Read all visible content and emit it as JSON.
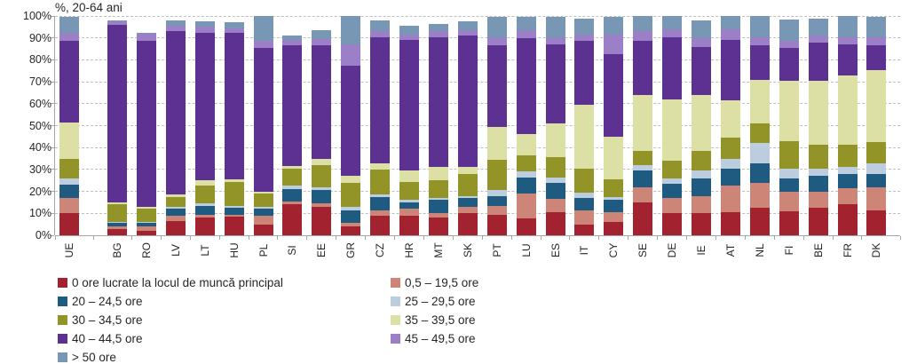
{
  "title": "%, 20-64 ani",
  "colors": {
    "h0": "#A22230",
    "h05_195": "#CC8576",
    "h20_245": "#1F5A80",
    "h25_295": "#BCCDE0",
    "h30_345": "#939428",
    "h35_395": "#DDE0A5",
    "h40_445": "#5C3192",
    "h45_495": "#9B7FC7",
    "h50plus": "#7897B4",
    "gridline": "#bfbfbf",
    "axis": "#a6a6a6",
    "text": "#262626"
  },
  "chart_data": {
    "type": "bar",
    "subtype": "stacked-percentage-column",
    "title": "%, 20-64 ani",
    "xlabel": "",
    "ylabel": "",
    "ylim": [
      0,
      100
    ],
    "grid": "horizontal dashed every 10%",
    "legend_position": "bottom two-column",
    "y_ticks": [
      "0%",
      "10%",
      "20%",
      "30%",
      "40%",
      "50%",
      "60%",
      "70%",
      "80%",
      "90%",
      "100%"
    ],
    "categories": [
      "UE",
      "BG",
      "RO",
      "LV",
      "LT",
      "HU",
      "PL",
      "SI",
      "EE",
      "GR",
      "CZ",
      "HR",
      "MT",
      "SK",
      "PT",
      "LU",
      "ES",
      "IT",
      "CY",
      "SE",
      "DE",
      "IE",
      "AT",
      "NL",
      "FI",
      "BE",
      "FR",
      "DK"
    ],
    "series": [
      {
        "name": "0 ore lucrate la locul de muncă principal",
        "color_key": "h0",
        "values": [
          10,
          3,
          2,
          6.5,
          8,
          8.5,
          5,
          14,
          13,
          4,
          9,
          9,
          8,
          10,
          9.5,
          7.5,
          10.5,
          5,
          6,
          15,
          10,
          10,
          10.5,
          12.5,
          11,
          12.5,
          14,
          11.5
        ]
      },
      {
        "name": "0,5 – 19,5 ore",
        "color_key": "h05_195",
        "values": [
          7,
          1,
          2,
          2.5,
          1.5,
          1,
          4,
          1.5,
          1.5,
          1.5,
          2.5,
          3,
          2,
          3,
          4,
          11.5,
          6,
          6.5,
          4.5,
          7,
          7,
          8,
          12,
          11.5,
          9,
          7.5,
          7.5,
          10.5
        ]
      },
      {
        "name": "20 – 24,5 ore",
        "color_key": "h20_245",
        "values": [
          6,
          1.5,
          1.5,
          3,
          4,
          3,
          3,
          5.5,
          6,
          6,
          6,
          3,
          6,
          4,
          4.5,
          7.5,
          7.5,
          5.5,
          5.5,
          7.5,
          6.5,
          8,
          8,
          9,
          6,
          7,
          6.5,
          6
        ]
      },
      {
        "name": "25 – 29,5 ore",
        "color_key": "h25_295",
        "values": [
          3,
          0.5,
          0.5,
          1,
          1,
          1,
          1,
          1.5,
          1.5,
          1.5,
          1,
          1,
          1,
          1,
          2.5,
          2.5,
          2.5,
          2.5,
          1.5,
          2.5,
          2.5,
          3.5,
          4.5,
          9,
          4.5,
          3.5,
          3,
          5
        ]
      },
      {
        "name": "30 – 34,5 ore",
        "color_key": "h30_345",
        "values": [
          9,
          8,
          6,
          4.5,
          8,
          11,
          6,
          8,
          10,
          11,
          11.5,
          8.5,
          8,
          10,
          14,
          7.5,
          9,
          11,
          8,
          6.5,
          8,
          9,
          9.5,
          9,
          12.5,
          11,
          10.5,
          9.5
        ]
      },
      {
        "name": "35 – 39,5 ore",
        "color_key": "h35_395",
        "values": [
          16.5,
          1,
          1,
          1,
          2.5,
          1,
          1,
          1,
          3,
          3,
          3,
          5,
          6,
          3,
          15,
          9.5,
          15.5,
          29,
          19.5,
          25.5,
          28,
          25.5,
          17,
          20,
          27.5,
          29,
          31.5,
          33
        ]
      },
      {
        "name": "40 – 44,5 ore",
        "color_key": "h40_445",
        "values": [
          37,
          81,
          75.5,
          74.5,
          67.5,
          67,
          65.5,
          55,
          51.5,
          50.5,
          57.5,
          59.5,
          59.5,
          60,
          37,
          44,
          36,
          29,
          37.5,
          24.5,
          28.5,
          22,
          27.5,
          15.5,
          15,
          17.5,
          14,
          11
        ]
      },
      {
        "name": "45 – 49,5 ore",
        "color_key": "h45_495",
        "values": [
          4,
          1.5,
          3.5,
          2.5,
          2.5,
          2,
          3,
          2.5,
          3,
          9.5,
          2.5,
          2.5,
          2.5,
          2.5,
          4,
          3.5,
          3.5,
          3,
          9,
          4.5,
          3.5,
          4,
          5,
          4,
          3,
          3,
          3.5,
          4
        ]
      },
      {
        "name": "> 50 ore",
        "color_key": "h50plus",
        "values": [
          7,
          0.5,
          0.5,
          2.5,
          2.5,
          2.5,
          11.5,
          2,
          4,
          13,
          5,
          4,
          3.5,
          4,
          9,
          6,
          9,
          7.5,
          8,
          7,
          6,
          8,
          6,
          9.5,
          10,
          8,
          9.5,
          9
        ]
      }
    ]
  },
  "legend": {
    "columns": [
      {
        "x": 65,
        "items": [
          {
            "label": "0 ore lucrate la locul de muncă principal",
            "color_key": "h0"
          },
          {
            "label": "20 – 24,5 ore",
            "color_key": "h20_245"
          },
          {
            "label": "30 – 34,5 ore",
            "color_key": "h30_345"
          },
          {
            "label": "40 – 44,5 ore",
            "color_key": "h40_445"
          },
          {
            "label": "> 50 ore",
            "color_key": "h50plus"
          }
        ]
      },
      {
        "x": 440,
        "items": [
          {
            "label": "0,5 – 19,5 ore",
            "color_key": "h05_195"
          },
          {
            "label": "25 – 29,5 ore",
            "color_key": "h25_295"
          },
          {
            "label": "35 – 39,5 ore",
            "color_key": "h35_395"
          },
          {
            "label": "45 – 49,5 ore",
            "color_key": "h45_495"
          }
        ]
      }
    ]
  }
}
